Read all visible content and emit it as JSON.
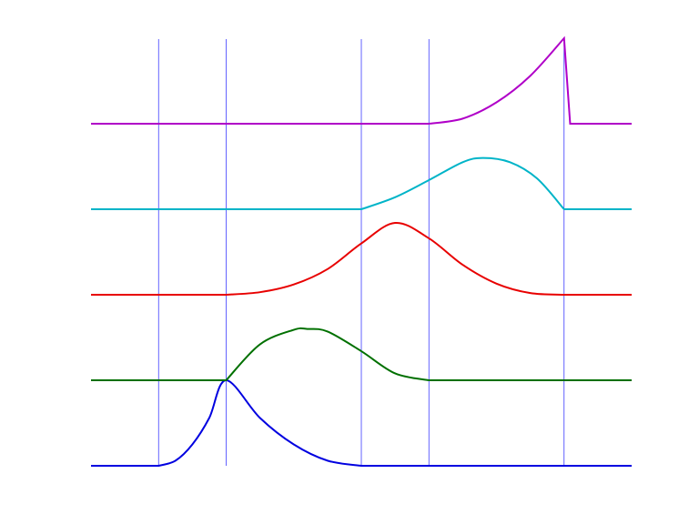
{
  "chart_data": {
    "type": "line",
    "title": "",
    "xlabel": "",
    "ylabel": "",
    "xlim": [
      0,
      8
    ],
    "grid": false,
    "vertical_lines": {
      "x": [
        1,
        2,
        4,
        5,
        7
      ],
      "color": "#3c3cff"
    },
    "series": [
      {
        "color": "#0000e0",
        "offset": 0,
        "points": [
          [
            0,
            0
          ],
          [
            1,
            0
          ],
          [
            1.25,
            0.06
          ],
          [
            1.5,
            0.25
          ],
          [
            1.75,
            0.56
          ],
          [
            2,
            1
          ],
          [
            2.5,
            0.56
          ],
          [
            3,
            0.25
          ],
          [
            3.5,
            0.06
          ],
          [
            4,
            0
          ],
          [
            8,
            0
          ]
        ]
      },
      {
        "color": "#007000",
        "offset": 1,
        "points": [
          [
            0,
            0
          ],
          [
            2,
            0
          ],
          [
            2.5,
            0.42
          ],
          [
            3,
            0.59
          ],
          [
            3.2,
            0.6
          ],
          [
            3.5,
            0.57
          ],
          [
            4,
            0.34
          ],
          [
            4.5,
            0.08
          ],
          [
            5,
            0
          ],
          [
            8,
            0
          ]
        ]
      },
      {
        "color": "#e80000",
        "offset": 2,
        "points": [
          [
            0,
            0
          ],
          [
            2,
            0
          ],
          [
            2.5,
            0.03
          ],
          [
            3,
            0.12
          ],
          [
            3.5,
            0.3
          ],
          [
            4,
            0.6
          ],
          [
            4.5,
            0.84
          ],
          [
            5,
            0.66
          ],
          [
            5.5,
            0.35
          ],
          [
            6,
            0.13
          ],
          [
            6.5,
            0.02
          ],
          [
            7,
            0
          ],
          [
            8,
            0
          ]
        ]
      },
      {
        "color": "#00b4c8",
        "offset": 3,
        "points": [
          [
            0,
            0
          ],
          [
            4,
            0
          ],
          [
            4.5,
            0.14
          ],
          [
            5,
            0.34
          ],
          [
            5.5,
            0.55
          ],
          [
            5.8,
            0.6
          ],
          [
            6.2,
            0.55
          ],
          [
            6.6,
            0.36
          ],
          [
            7,
            0
          ],
          [
            8,
            0
          ]
        ]
      },
      {
        "color": "#b000c8",
        "offset": 4,
        "points": [
          [
            0,
            0
          ],
          [
            5,
            0
          ],
          [
            5.5,
            0.06
          ],
          [
            6,
            0.25
          ],
          [
            6.5,
            0.56
          ],
          [
            7,
            1
          ],
          [
            7.09,
            0
          ],
          [
            8,
            0
          ]
        ]
      }
    ]
  }
}
